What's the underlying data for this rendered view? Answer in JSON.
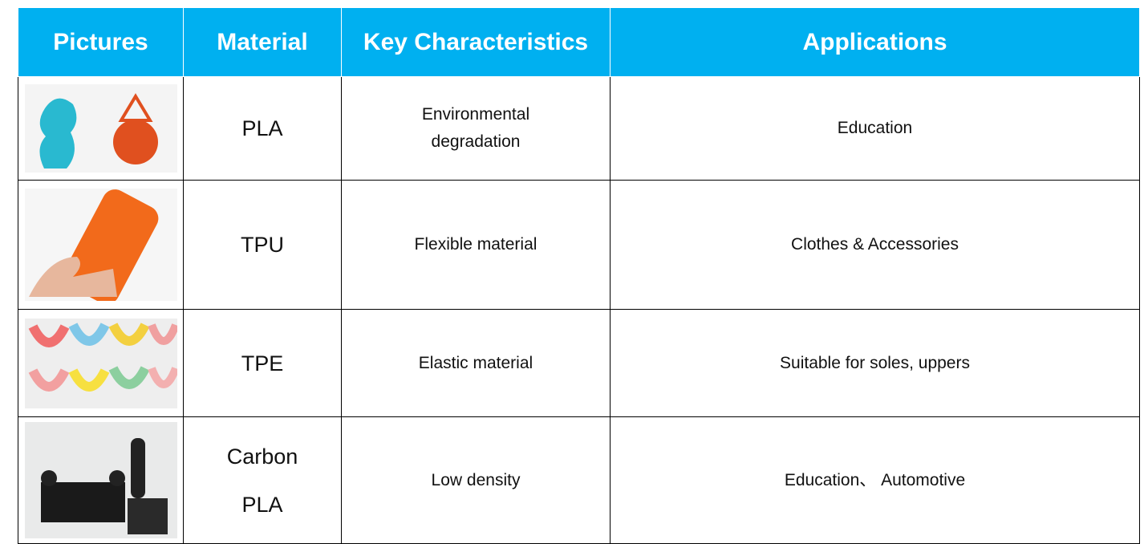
{
  "header": [
    "Pictures",
    "Material",
    "Key Characteristics",
    "Applications"
  ],
  "rows": [
    {
      "material": "PLA",
      "characteristics": "Environmental degradation",
      "applications": "Education"
    },
    {
      "material": "TPU",
      "characteristics": "Flexible material",
      "applications": "Clothes & Accessories"
    },
    {
      "material": "TPE",
      "characteristics": "Elastic material",
      "applications": "Suitable for soles, uppers"
    },
    {
      "material": "Carbon PLA",
      "characteristics": "Low density",
      "applications": "Education、 Automotive"
    }
  ]
}
